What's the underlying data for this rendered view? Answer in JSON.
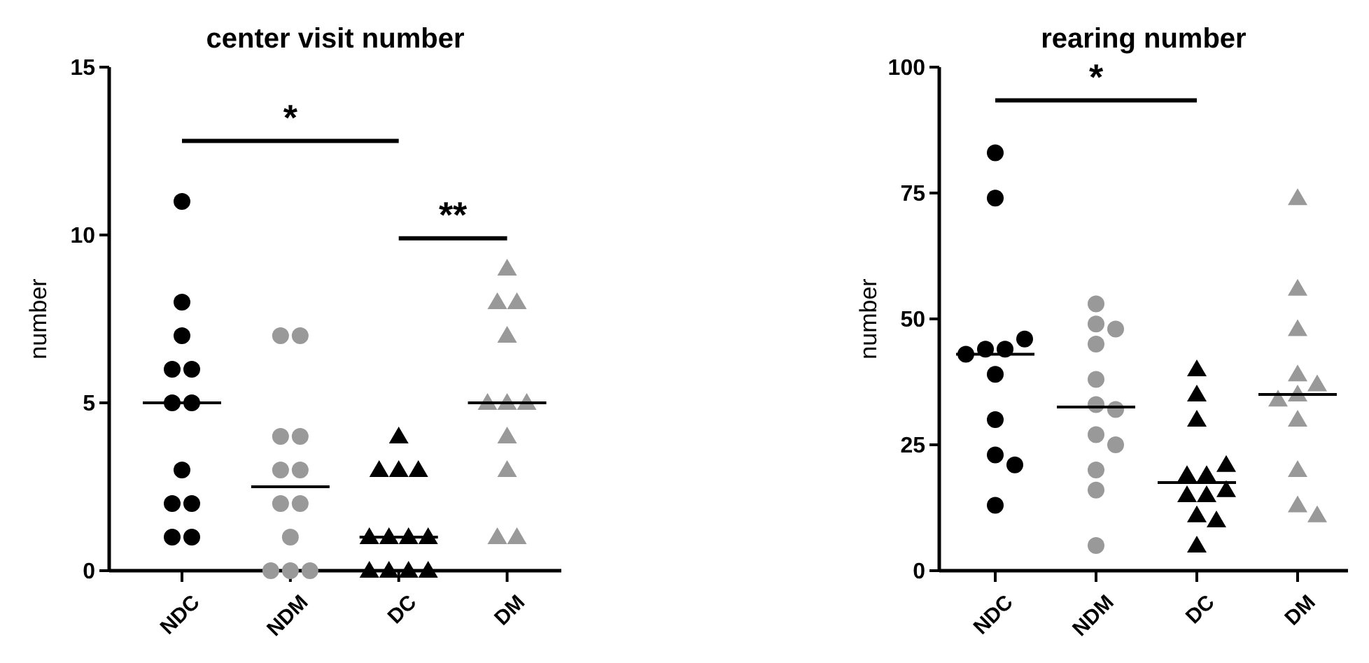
{
  "chart_data": [
    {
      "type": "scatter",
      "title": "center visit number",
      "ylabel": "number",
      "categories": [
        "NDC",
        "NDM",
        "DC",
        "DM"
      ],
      "ylim": [
        0,
        15
      ],
      "yticks": [
        0,
        5,
        10,
        15
      ],
      "series": [
        {
          "x": [
            "NDC",
            "NDC",
            "NDC",
            "NDC",
            "NDC",
            "NDC",
            "NDC",
            "NDC",
            "NDC",
            "NDC",
            "NDC",
            "NDC"
          ],
          "values": [
            11,
            8,
            7,
            6,
            6,
            5,
            5,
            3,
            2,
            2,
            1,
            1
          ],
          "color": "#000000",
          "marker": "circle"
        },
        {
          "x": [
            "NDM",
            "NDM",
            "NDM",
            "NDM",
            "NDM",
            "NDM",
            "NDM",
            "NDM",
            "NDM",
            "NDM",
            "NDM",
            "NDM"
          ],
          "values": [
            7,
            7,
            4,
            4,
            3,
            3,
            2,
            2,
            1,
            0,
            0,
            0
          ],
          "color": "#999999",
          "marker": "circle"
        },
        {
          "x": [
            "DC",
            "DC",
            "DC",
            "DC",
            "DC",
            "DC",
            "DC",
            "DC",
            "DC",
            "DC",
            "DC",
            "DC"
          ],
          "values": [
            4,
            3,
            3,
            3,
            1,
            1,
            1,
            1,
            0,
            0,
            0,
            0
          ],
          "color": "#000000",
          "marker": "triangle"
        },
        {
          "x": [
            "DM",
            "DM",
            "DM",
            "DM",
            "DM",
            "DM",
            "DM",
            "DM",
            "DM",
            "DM",
            "DM"
          ],
          "values": [
            9,
            8,
            8,
            7,
            5,
            5,
            5,
            4,
            3,
            1,
            1
          ],
          "color": "#999999",
          "marker": "triangle"
        },
        {
          "type": "box",
          "color": "#000000",
          "boxes": [
            {
              "low": 5,
              "q1": 5,
              "median": 5,
              "q3": 5,
              "high": 5
            },
            {
              "low": 2.5,
              "q1": 2.5,
              "median": 2.5,
              "q3": 2.5,
              "high": 2.5
            },
            {
              "low": 1,
              "q1": 1,
              "median": 1,
              "q3": 1,
              "high": 1
            },
            {
              "low": 5,
              "q1": 5,
              "median": 5,
              "q3": 5,
              "high": 5
            }
          ]
        }
      ],
      "annotations": [
        "*",
        "**"
      ]
    },
    {
      "type": "scatter",
      "title": "rearing number",
      "ylabel": "number",
      "categories": [
        "NDC",
        "NDM",
        "DC",
        "DM"
      ],
      "ylim": [
        0,
        100
      ],
      "yticks": [
        0,
        25,
        50,
        75,
        100
      ],
      "series": [
        {
          "x": [
            "NDC",
            "NDC",
            "NDC",
            "NDC",
            "NDC",
            "NDC",
            "NDC",
            "NDC",
            "NDC",
            "NDC",
            "NDC"
          ],
          "values": [
            83,
            74,
            46,
            44,
            44,
            43,
            39,
            30,
            23,
            21,
            13
          ],
          "color": "#000000",
          "marker": "circle"
        },
        {
          "x": [
            "NDM",
            "NDM",
            "NDM",
            "NDM",
            "NDM",
            "NDM",
            "NDM",
            "NDM",
            "NDM",
            "NDM",
            "NDM",
            "NDM"
          ],
          "values": [
            53,
            49,
            48,
            45,
            38,
            33,
            32,
            27,
            25,
            20,
            16,
            5
          ],
          "color": "#999999",
          "marker": "circle"
        },
        {
          "x": [
            "DC",
            "DC",
            "DC",
            "DC",
            "DC",
            "DC",
            "DC",
            "DC",
            "DC",
            "DC",
            "DC",
            "DC"
          ],
          "values": [
            40,
            35,
            30,
            21,
            19,
            19,
            16,
            15,
            15,
            11,
            10,
            5
          ],
          "color": "#000000",
          "marker": "triangle"
        },
        {
          "x": [
            "DM",
            "DM",
            "DM",
            "DM",
            "DM",
            "DM",
            "DM",
            "DM",
            "DM",
            "DM",
            "DM"
          ],
          "values": [
            74,
            56,
            48,
            39,
            37,
            35,
            34,
            30,
            20,
            13,
            11
          ],
          "color": "#999999",
          "marker": "triangle"
        },
        {
          "type": "box",
          "color": "#000000",
          "boxes": [
            {
              "low": 43,
              "q1": 43,
              "median": 43,
              "q3": 43,
              "high": 43
            },
            {
              "low": 32.5,
              "q1": 32.5,
              "median": 32.5,
              "q3": 32.5,
              "high": 32.5
            },
            {
              "low": 17.5,
              "q1": 17.5,
              "median": 17.5,
              "q3": 17.5,
              "high": 17.5
            },
            {
              "low": 35,
              "q1": 35,
              "median": 35,
              "q3": 35,
              "high": 35
            }
          ]
        }
      ],
      "annotations": [
        "*"
      ]
    }
  ]
}
